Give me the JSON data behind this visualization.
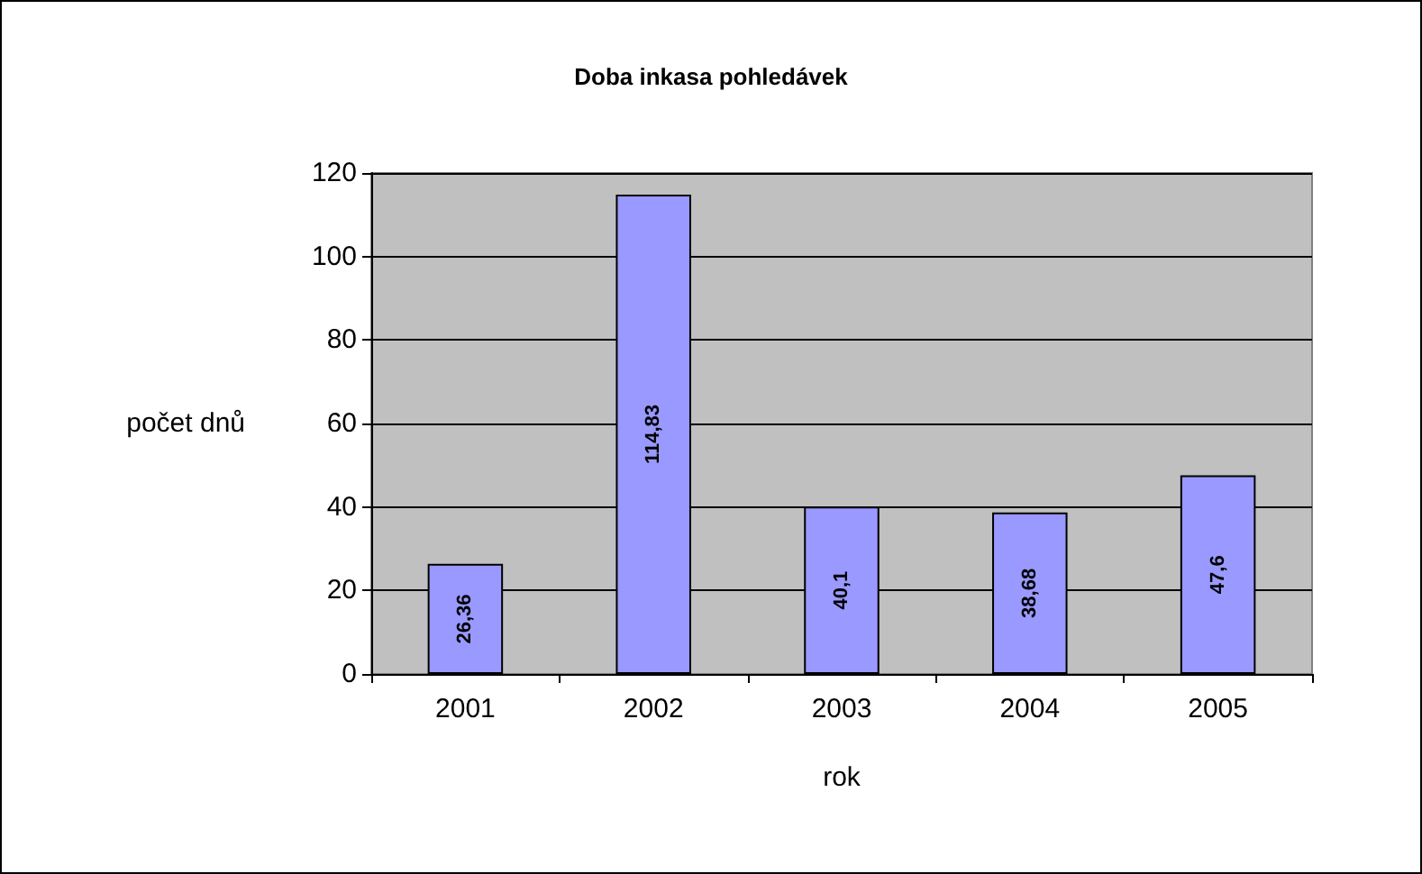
{
  "chart_data": {
    "type": "bar",
    "title": "Doba inkasa pohledávek",
    "xlabel": "rok",
    "ylabel": "počet dnů",
    "categories": [
      "2001",
      "2002",
      "2003",
      "2004",
      "2005"
    ],
    "values": [
      26.36,
      114.83,
      40.1,
      38.68,
      47.6
    ],
    "value_labels": [
      "26,36",
      "114,83",
      "40,1",
      "38,68",
      "47,6"
    ],
    "color": "#9999ff",
    "ylim": [
      0,
      120
    ],
    "yticks": [
      0,
      20,
      40,
      60,
      80,
      100,
      120
    ],
    "grid": "y"
  }
}
